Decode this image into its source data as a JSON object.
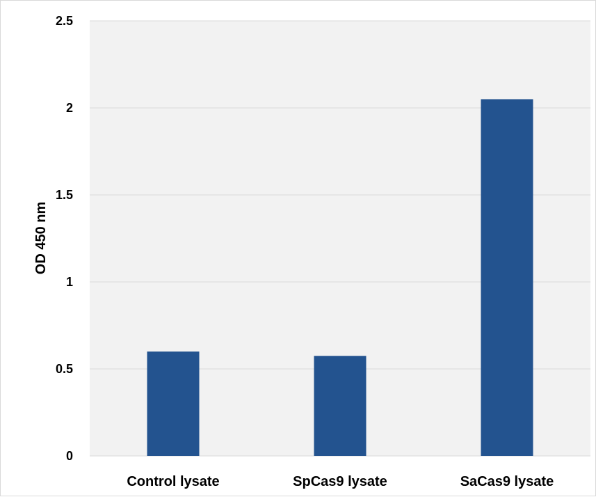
{
  "chart_data": {
    "type": "bar",
    "categories": [
      "Control lysate",
      "SpCas9 lysate",
      "SaCas9 lysate"
    ],
    "values": [
      0.6,
      0.575,
      2.05
    ],
    "title": "",
    "xlabel": "",
    "ylabel": "OD 450 nm",
    "ylim": [
      0,
      2.5
    ],
    "yticks": [
      "0",
      "0.5",
      "1",
      "1.5",
      "2",
      "2.5"
    ],
    "grid": true,
    "legend": "none",
    "colors": {
      "bar": "#23538f",
      "plot_background": "#f2f2f2",
      "gridline": "#d9d9d9",
      "frame": "#d9d9d9"
    }
  }
}
